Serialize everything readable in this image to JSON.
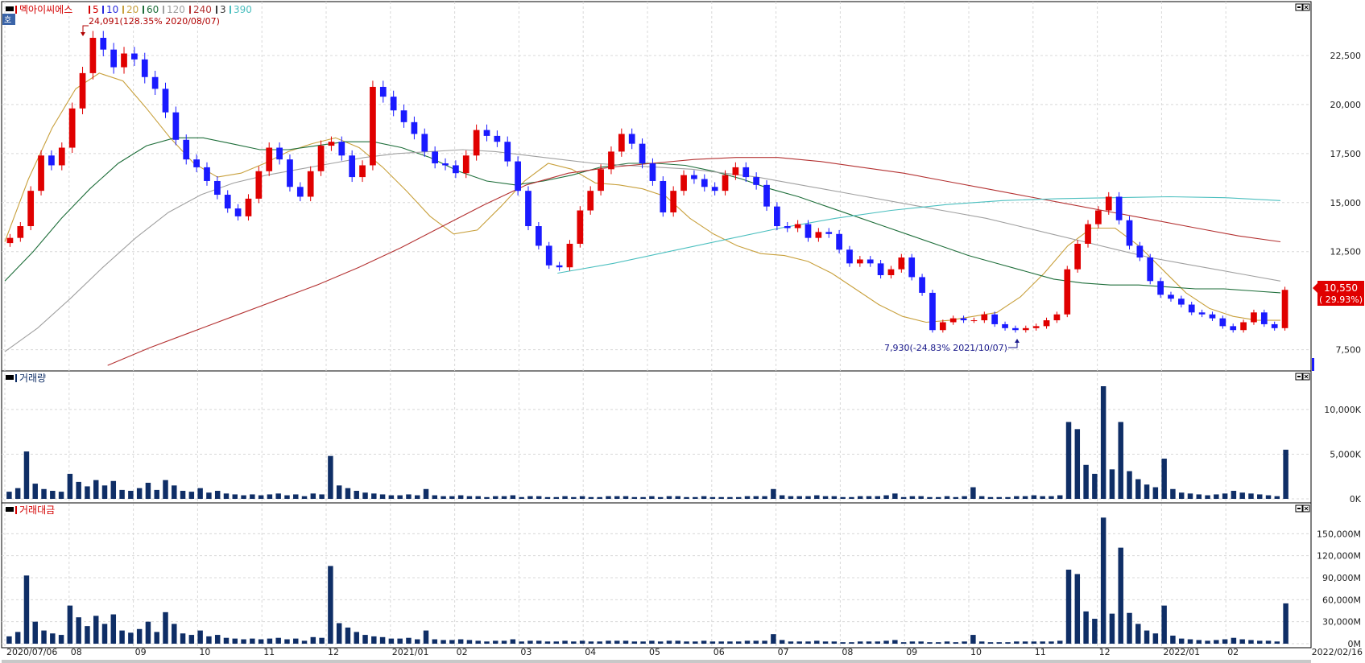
{
  "legend": {
    "price_title": "멕아이씨에스",
    "ma_labels": [
      "5",
      "10",
      "20",
      "60",
      "120",
      "240",
      "3",
      "390"
    ],
    "ma_colors": [
      "#d40000",
      "#2a2adc",
      "#c8a03c",
      "#1e6e3a",
      "#a0a0a0",
      "#b43232",
      "#3c3c3c",
      "#4bbfbf"
    ],
    "volume_title": "거래량",
    "value_title": "거래대금",
    "corner_badge": "호"
  },
  "annotations": {
    "high": "24,091(128.35% 2020/08/07)",
    "low": "7,930(-24.83% 2021/10/07)",
    "current_price": "10,550",
    "current_change": "( 29.93%)"
  },
  "colors": {
    "up": "#e00000",
    "down": "#1a1aff",
    "volume": "#0f2e66",
    "grid": "#d8d8d8"
  },
  "chart_data": [
    {
      "type": "candlestick",
      "title": "멕아이씨에스",
      "ylim": [
        6500,
        25000
      ],
      "y_ticks": [
        "22,500",
        "20,000",
        "17,500",
        "15,000",
        "12,500",
        "7,500"
      ],
      "y_tick_values": [
        22500,
        20000,
        17500,
        15000,
        12500,
        7500
      ],
      "x_labels": [
        "2020/07/06",
        "08",
        "09",
        "10",
        "11",
        "12",
        "2021/01",
        "02",
        "03",
        "04",
        "05",
        "06",
        "07",
        "08",
        "09",
        "10",
        "11",
        "12",
        "2022/01",
        "02",
        "2022/02/16"
      ],
      "close_series": [
        13200,
        13800,
        15600,
        17400,
        16900,
        17800,
        19800,
        21600,
        23400,
        22800,
        21900,
        22600,
        22300,
        21400,
        20800,
        19600,
        18200,
        17200,
        16800,
        16100,
        15400,
        14700,
        14300,
        15200,
        16600,
        17800,
        17200,
        15800,
        15300,
        16600,
        17900,
        18100,
        17400,
        16300,
        16900,
        20900,
        20400,
        19700,
        19100,
        18500,
        17600,
        17000,
        16900,
        16500,
        17400,
        18700,
        18400,
        18100,
        17100,
        15600,
        13800,
        12800,
        11800,
        11700,
        12900,
        14600,
        15600,
        16700,
        17600,
        18500,
        18000,
        17000,
        16100,
        14500,
        15600,
        16400,
        16200,
        15800,
        15600,
        16400,
        16800,
        16300,
        15900,
        14800,
        13800,
        13700,
        13900,
        13200,
        13500,
        13400,
        12600,
        11900,
        12100,
        11900,
        11300,
        11600,
        12200,
        11200,
        10400,
        8500,
        8900,
        9100,
        9000,
        9000,
        9300,
        8800,
        8600,
        8500,
        8600,
        8700,
        9000,
        9300,
        11600,
        12900,
        13900,
        14600,
        15300,
        14100,
        12800,
        12200,
        11000,
        10300,
        10100,
        9800,
        9400,
        9300,
        9100,
        8700,
        8500,
        8900,
        9400,
        8800,
        8600,
        10550
      ],
      "ma_series": [
        {
          "name": "20",
          "values": [
            13000,
            16200,
            18800,
            20800,
            21600,
            21200,
            19800,
            18300,
            17000,
            16300,
            16500,
            17000,
            17600,
            18000,
            18300,
            17800,
            16800,
            15600,
            14300,
            13400,
            13600,
            14800,
            16100,
            17000,
            16700,
            16000,
            15900,
            15700,
            15300,
            14200,
            13400,
            12800,
            12400,
            12300,
            12000,
            11400,
            10600,
            9800,
            9200,
            8900,
            9000,
            9200,
            9400,
            10200,
            11400,
            12800,
            13700,
            13700,
            12800,
            11600,
            10400,
            9600,
            9200,
            9000,
            9000
          ]
        },
        {
          "name": "60",
          "values": [
            11000,
            12500,
            14200,
            15700,
            17000,
            17900,
            18300,
            18300,
            18000,
            17700,
            17700,
            17900,
            18100,
            18100,
            17800,
            17300,
            16600,
            16100,
            15900,
            16100,
            16400,
            16800,
            17000,
            17000,
            16900,
            16600,
            16200,
            15700,
            15300,
            14800,
            14300,
            13800,
            13300,
            12800,
            12300,
            11900,
            11500,
            11100,
            10900,
            10800,
            10800,
            10700,
            10600,
            10600,
            10500,
            10400
          ]
        },
        {
          "name": "120",
          "values": [
            7400,
            8600,
            10100,
            11700,
            13200,
            14500,
            15400,
            16000,
            16400,
            16700,
            17000,
            17300,
            17500,
            17600,
            17700,
            17600,
            17400,
            17200,
            17000,
            16900,
            16800,
            16700,
            16500,
            16300,
            16000,
            15700,
            15400,
            15100,
            14800,
            14500,
            14200,
            13800,
            13400,
            13000,
            12600,
            12200,
            11900,
            11600,
            11300,
            11000
          ]
        },
        {
          "name": "240",
          "values": [
            6700,
            7600,
            8400,
            9200,
            10000,
            10800,
            11700,
            12700,
            13800,
            14900,
            15900,
            16500,
            16800,
            17000,
            17200,
            17300,
            17300,
            17100,
            16800,
            16500,
            16100,
            15700,
            15300,
            14900,
            14500,
            14100,
            13700,
            13300,
            13000
          ]
        },
        {
          "name": "390",
          "values": [
            11400,
            11900,
            12500,
            13100,
            13700,
            14200,
            14600,
            14900,
            15100,
            15200,
            15250,
            15300,
            15250,
            15100
          ]
        }
      ]
    },
    {
      "type": "bar",
      "title": "거래량",
      "y_ticks": [
        "10,000K",
        "5,000K",
        "0K"
      ],
      "y_tick_values": [
        10000,
        5000,
        0
      ],
      "unit": "K",
      "values": [
        800,
        1200,
        5300,
        1700,
        1100,
        900,
        800,
        2800,
        1900,
        1400,
        2100,
        1500,
        2000,
        1000,
        900,
        1200,
        1800,
        1000,
        2100,
        1500,
        900,
        800,
        1200,
        700,
        900,
        600,
        500,
        400,
        500,
        400,
        500,
        600,
        400,
        500,
        300,
        600,
        500,
        4800,
        1500,
        1200,
        900,
        700,
        600,
        500,
        400,
        400,
        500,
        400,
        1100,
        400,
        300,
        300,
        400,
        300,
        300,
        200,
        300,
        300,
        400,
        200,
        300,
        300,
        200,
        200,
        300,
        200,
        300,
        200,
        200,
        300,
        300,
        300,
        200,
        200,
        300,
        200,
        300,
        300,
        200,
        200,
        300,
        200,
        200,
        200,
        200,
        300,
        300,
        300,
        1100,
        400,
        300,
        300,
        300,
        400,
        300,
        300,
        200,
        200,
        300,
        300,
        300,
        400,
        600,
        200,
        300,
        300,
        200,
        200,
        300,
        200,
        300,
        1300,
        300,
        200,
        200,
        200,
        300,
        300,
        400,
        300,
        300,
        400,
        8600,
        7800,
        3800,
        2800,
        12600,
        3300,
        8600,
        3100,
        2200,
        1600,
        1300,
        4500,
        1100,
        700,
        600,
        500,
        400,
        500,
        600,
        900,
        700,
        600,
        500,
        400,
        300,
        5500
      ]
    },
    {
      "type": "bar",
      "title": "거래대금",
      "y_ticks": [
        "150,000M",
        "120,000M",
        "90,000M",
        "60,000M",
        "30,000M",
        "0M"
      ],
      "y_tick_values": [
        150000,
        120000,
        90000,
        60000,
        30000,
        0
      ],
      "unit": "M",
      "values": [
        10000,
        16000,
        93000,
        30000,
        18000,
        14000,
        12000,
        52000,
        36000,
        24000,
        38000,
        27000,
        40000,
        18000,
        15000,
        20000,
        30000,
        16000,
        43000,
        27000,
        14000,
        12000,
        18000,
        10000,
        12000,
        8000,
        7000,
        6000,
        7000,
        6000,
        7000,
        8000,
        6000,
        7000,
        4000,
        9000,
        8000,
        106000,
        28000,
        22000,
        16000,
        12000,
        10000,
        9000,
        7000,
        7000,
        8000,
        6000,
        18000,
        6000,
        5000,
        5000,
        6000,
        5000,
        4000,
        3000,
        4000,
        4000,
        6000,
        3000,
        4000,
        4000,
        3000,
        3000,
        4000,
        3000,
        4000,
        3000,
        3000,
        4000,
        4000,
        4000,
        3000,
        3000,
        4000,
        3000,
        4000,
        4000,
        3000,
        3000,
        4000,
        3000,
        3000,
        3000,
        3000,
        4000,
        4000,
        4000,
        13000,
        5000,
        3000,
        3000,
        3000,
        4000,
        3000,
        3000,
        2000,
        2000,
        3000,
        3000,
        3000,
        4000,
        5000,
        2000,
        3000,
        3000,
        2000,
        2000,
        3000,
        2000,
        3000,
        12000,
        3000,
        2000,
        2000,
        2000,
        3000,
        3000,
        3000,
        3000,
        3000,
        4000,
        101000,
        95000,
        44000,
        34000,
        172000,
        41000,
        131000,
        42000,
        27000,
        18000,
        14000,
        52000,
        11000,
        7000,
        6000,
        5000,
        4000,
        5000,
        6000,
        8000,
        6000,
        5000,
        4000,
        4000,
        3000,
        55000
      ]
    }
  ]
}
